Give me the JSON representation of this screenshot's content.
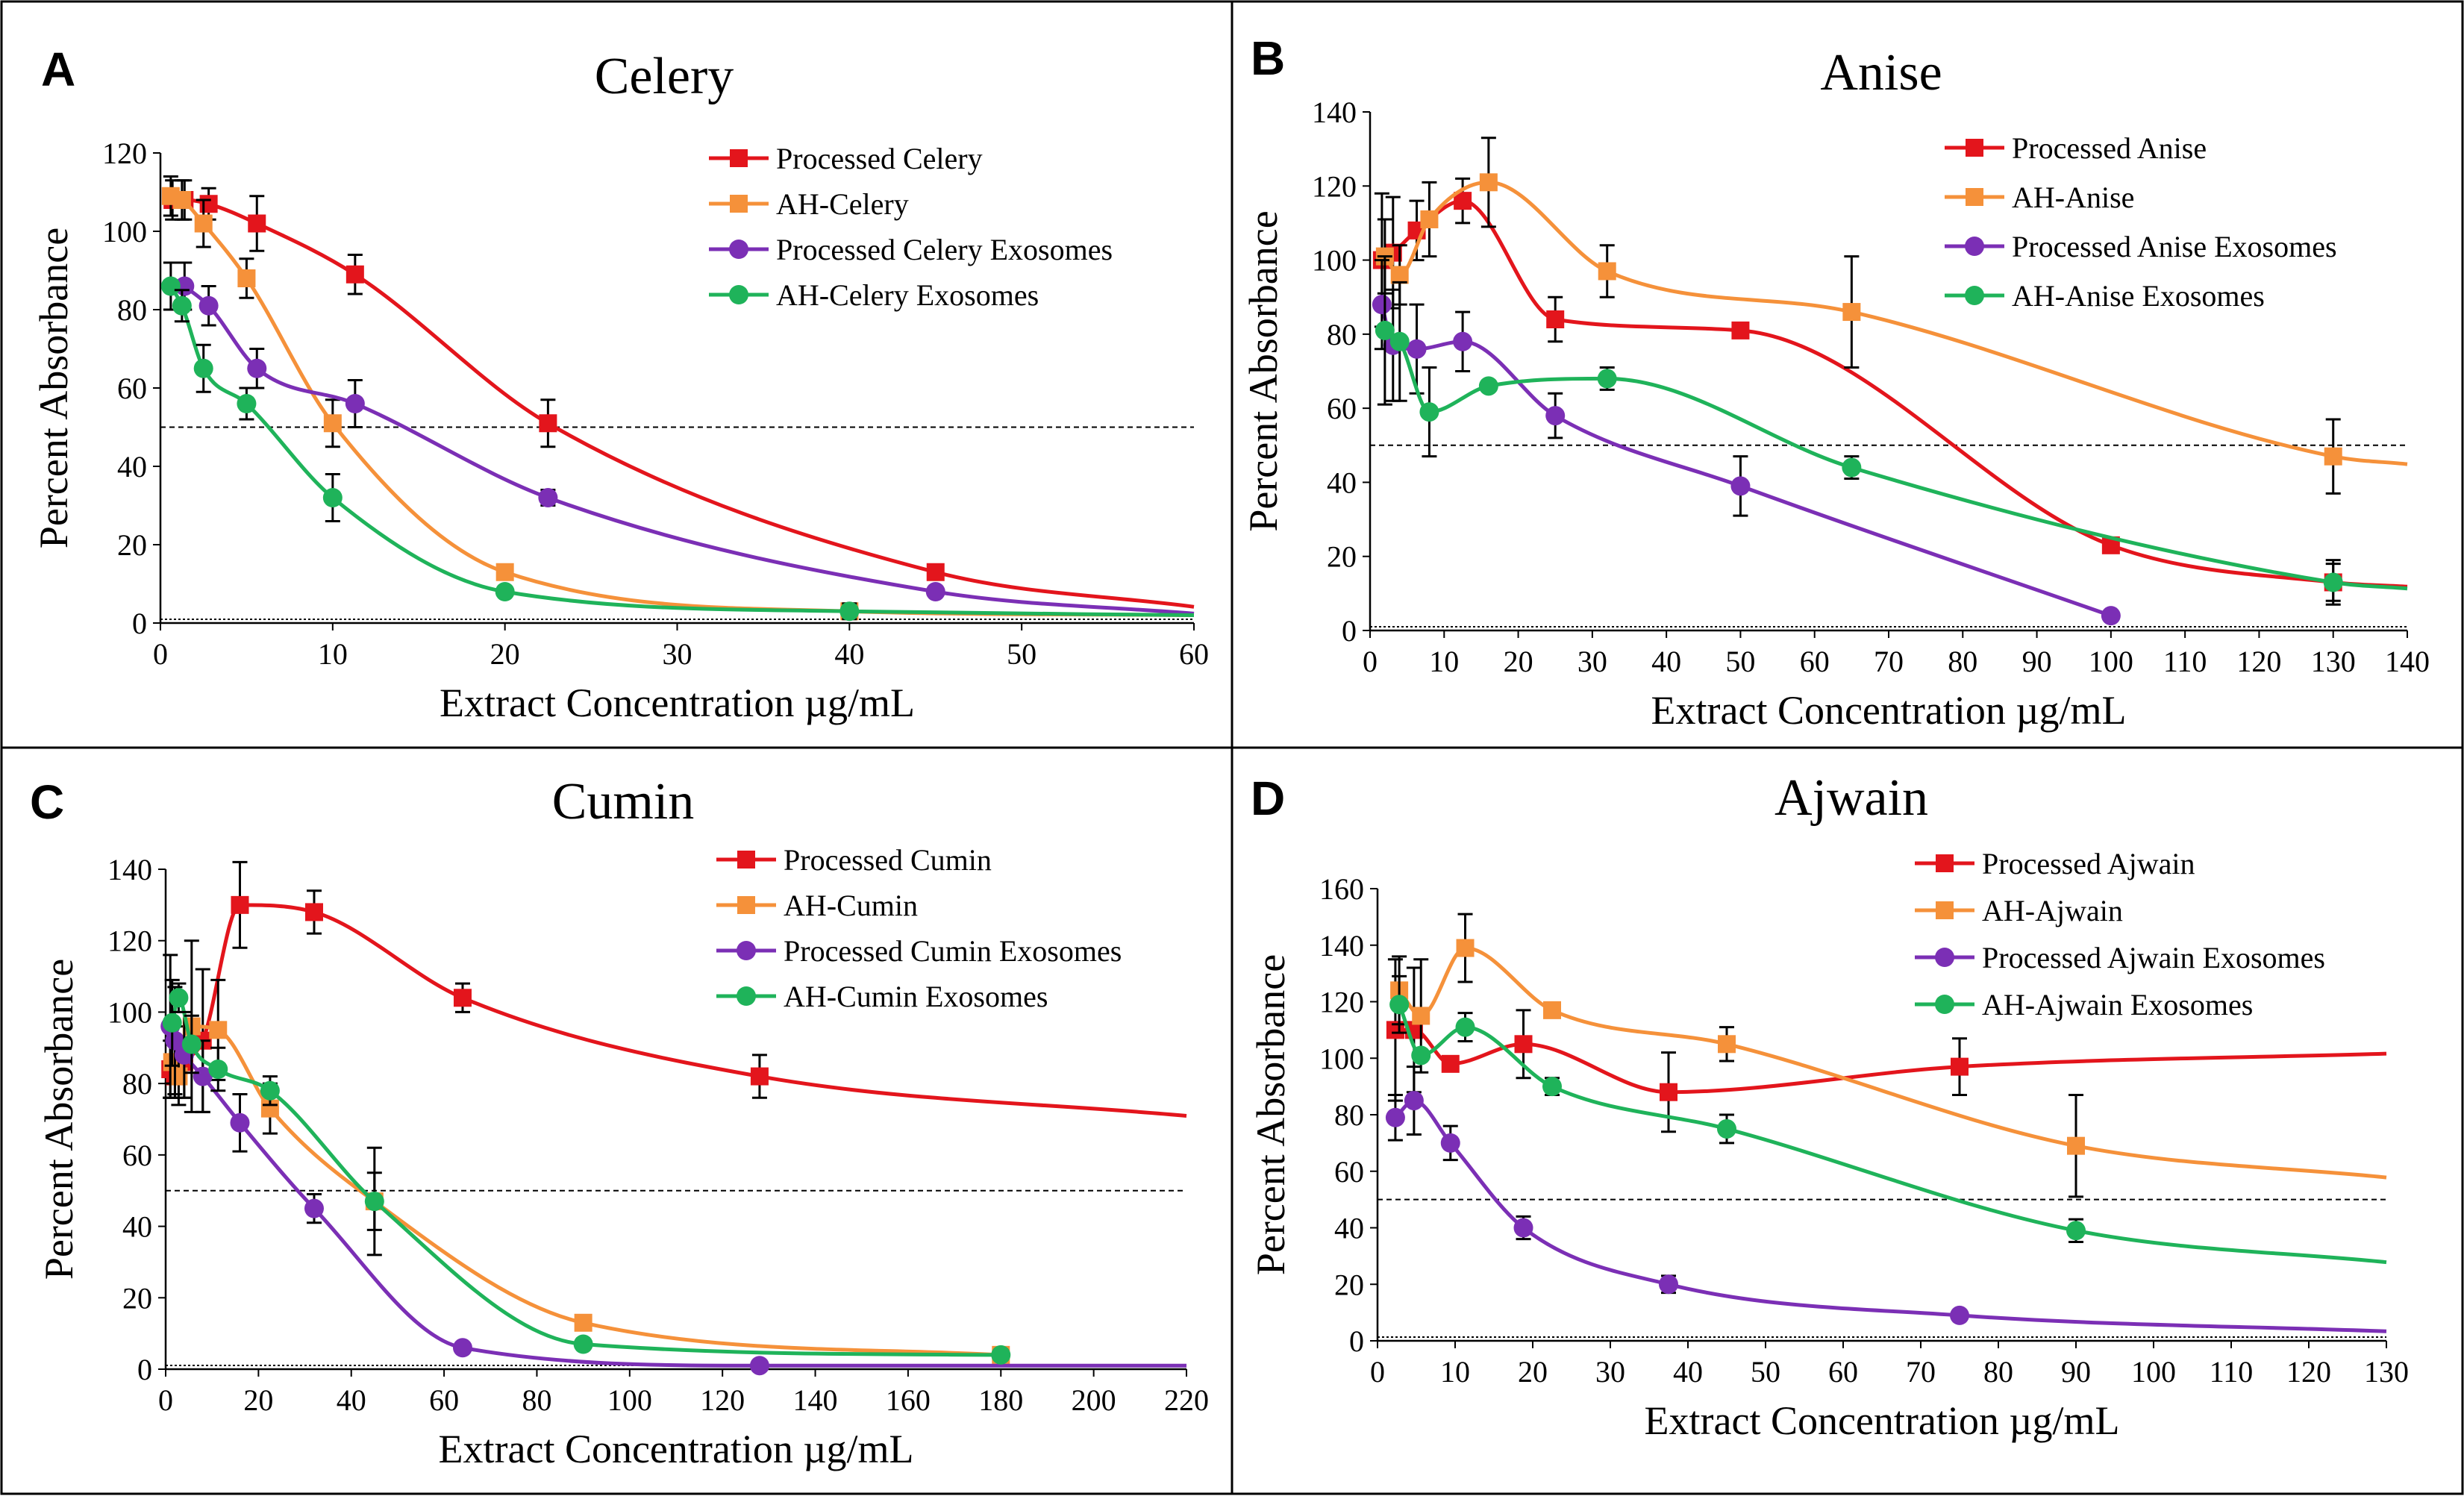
{
  "figure": {
    "series_colors": {
      "processed": "#e3151c",
      "ah": "#f5913a",
      "processed_exosomes": "#7b2fb5",
      "ah_exosomes": "#1fb35a"
    }
  },
  "chart_data": [
    {
      "panel": "A",
      "type": "line",
      "title": "Celery",
      "xlabel": "Extract Concentration  µg/mL",
      "ylabel": "Percent Absorbance",
      "xlim": [
        0,
        60
      ],
      "ylim": [
        0,
        120
      ],
      "xticks": [
        0,
        10,
        20,
        30,
        40,
        50,
        60
      ],
      "yticks": [
        0,
        20,
        40,
        60,
        80,
        100,
        120
      ],
      "xtick_labels": [
        "0",
        "10",
        "20",
        "30",
        "40",
        "50",
        "60"
      ],
      "ytick_labels": [
        "0",
        "20",
        "40",
        "60",
        "80",
        "100",
        "120"
      ],
      "reference_line": 50,
      "legend_position": "top-right",
      "series": [
        {
          "name": "Processed Celery",
          "key": "processed",
          "marker": "square",
          "x": [
            0.7,
            1.4,
            2.8,
            5.6,
            11.3,
            22.5,
            45
          ],
          "y": [
            108,
            108,
            107,
            102,
            89,
            51,
            13
          ],
          "err": [
            5,
            5,
            4,
            7,
            5,
            6,
            0
          ],
          "xmax": 60
        },
        {
          "name": "AH-Celery",
          "key": "ah",
          "marker": "square",
          "x": [
            0.6,
            1.25,
            2.5,
            5,
            10,
            20,
            40
          ],
          "y": [
            109,
            108,
            102,
            88,
            51,
            13,
            3
          ],
          "err": [
            5,
            5,
            6,
            5,
            6,
            0,
            0
          ],
          "xmax": 60
        },
        {
          "name": "Processed Celery Exosomes",
          "key": "processed_exosomes",
          "marker": "circle",
          "x": [
            1.4,
            2.8,
            5.6,
            11.3,
            22.5,
            45
          ],
          "y": [
            86,
            81,
            65,
            56,
            32,
            8
          ],
          "err": [
            6,
            5,
            5,
            6,
            2,
            0
          ],
          "xmax": 60
        },
        {
          "name": "AH-Celery Exosomes",
          "key": "ah_exosomes",
          "marker": "circle",
          "x": [
            0.6,
            1.25,
            2.5,
            5,
            10,
            20,
            40
          ],
          "y": [
            86,
            81,
            65,
            56,
            32,
            8,
            3
          ],
          "err": [
            6,
            4,
            6,
            4,
            6,
            0,
            2
          ],
          "xmax": 60
        }
      ]
    },
    {
      "panel": "B",
      "type": "line",
      "title": "Anise",
      "xlabel": "Extract Concentration  µg/mL",
      "ylabel": "Percent Absorbance",
      "xlim": [
        0,
        140
      ],
      "ylim": [
        0,
        140
      ],
      "xticks": [
        0,
        10,
        20,
        30,
        40,
        50,
        60,
        70,
        80,
        90,
        100,
        110,
        120,
        130,
        140
      ],
      "yticks": [
        0,
        20,
        40,
        60,
        80,
        100,
        120,
        140
      ],
      "xtick_labels": [
        "0",
        "10",
        "20",
        "30",
        "40",
        "50",
        "60",
        "70",
        "80",
        "90",
        "100",
        "110",
        "120",
        "130",
        "140"
      ],
      "ytick_labels": [
        "0",
        "20",
        "40",
        "60",
        "80",
        "100",
        "120",
        "140"
      ],
      "reference_line": 50,
      "legend_position": "top-right",
      "series": [
        {
          "name": "Processed Anise",
          "key": "processed",
          "marker": "square",
          "x": [
            1.6,
            3.1,
            6.3,
            12.5,
            25,
            50,
            100,
            130
          ],
          "y": [
            100,
            102,
            108,
            116,
            84,
            81,
            23,
            13
          ],
          "err": [
            18,
            15,
            8,
            6,
            6,
            0,
            0,
            6
          ],
          "xmax": 140
        },
        {
          "name": "AH-Anise",
          "key": "ah",
          "marker": "square",
          "x": [
            2,
            4,
            8,
            16,
            32,
            65,
            130
          ],
          "y": [
            101,
            96,
            111,
            121,
            97,
            86,
            47
          ],
          "err": [
            10,
            8,
            10,
            12,
            7,
            15,
            10
          ],
          "xmax": 140
        },
        {
          "name": "Processed Anise Exosomes",
          "key": "processed_exosomes",
          "marker": "circle",
          "x": [
            1.6,
            3.1,
            6.3,
            12.5,
            25,
            50,
            100
          ],
          "y": [
            88,
            77,
            76,
            78,
            58,
            39,
            4
          ],
          "err": [
            12,
            15,
            12,
            8,
            6,
            8,
            0
          ],
          "xmax": 100
        },
        {
          "name": "AH-Anise Exosomes",
          "key": "ah_exosomes",
          "marker": "circle",
          "x": [
            2,
            4,
            8,
            16,
            32,
            65,
            130
          ],
          "y": [
            81,
            78,
            59,
            66,
            68,
            44,
            13
          ],
          "err": [
            20,
            16,
            12,
            0,
            3,
            3,
            5
          ],
          "xmax": 140
        }
      ]
    },
    {
      "panel": "C",
      "type": "line",
      "title": "Cumin",
      "xlabel": "Extract Concentration  µg/mL",
      "ylabel": "Percent Absorbance",
      "xlim": [
        0,
        220
      ],
      "ylim": [
        0,
        140
      ],
      "xticks": [
        0,
        20,
        40,
        60,
        80,
        100,
        120,
        140,
        160,
        180,
        200,
        220
      ],
      "yticks": [
        0,
        20,
        40,
        60,
        80,
        100,
        120,
        140
      ],
      "xtick_labels": [
        "0",
        "20",
        "40",
        "60",
        "80",
        "100",
        "120",
        "140",
        "160",
        "180",
        "200",
        "220"
      ],
      "ytick_labels": [
        "0",
        "20",
        "40",
        "60",
        "80",
        "100",
        "120",
        "140"
      ],
      "reference_line": 50,
      "legend_position": "top-right",
      "series": [
        {
          "name": "Processed Cumin",
          "key": "processed",
          "marker": "square",
          "x": [
            1,
            2,
            4,
            8,
            16,
            32,
            64,
            128
          ],
          "y": [
            84,
            82,
            86,
            92,
            130,
            128,
            104,
            82
          ],
          "err": [
            8,
            6,
            10,
            20,
            12,
            6,
            4,
            6
          ],
          "xmax": 220
        },
        {
          "name": "AH-Cumin",
          "key": "ah",
          "marker": "square",
          "x": [
            1.4,
            2.8,
            5.6,
            11.3,
            22.5,
            45,
            90,
            180
          ],
          "y": [
            86,
            82,
            96,
            95,
            73,
            47,
            13,
            4
          ],
          "err": [
            6,
            8,
            24,
            14,
            7,
            15,
            0,
            0
          ],
          "xmax": 180
        },
        {
          "name": "Processed Cumin Exosomes",
          "key": "processed_exosomes",
          "marker": "circle",
          "x": [
            1,
            2,
            4,
            8,
            16,
            32,
            64,
            128
          ],
          "y": [
            96,
            92,
            88,
            82,
            69,
            45,
            6,
            1
          ],
          "err": [
            20,
            15,
            12,
            10,
            8,
            4,
            0,
            0
          ],
          "xmax": 220
        },
        {
          "name": "AH-Cumin Exosomes",
          "key": "ah_exosomes",
          "marker": "circle",
          "x": [
            1.4,
            2.8,
            5.6,
            11.3,
            22.5,
            45,
            90,
            180
          ],
          "y": [
            97,
            104,
            91,
            84,
            78,
            47,
            7,
            4
          ],
          "err": [
            12,
            4,
            8,
            6,
            4,
            8,
            0,
            0
          ],
          "xmax": 180
        }
      ]
    },
    {
      "panel": "D",
      "type": "line",
      "title": "Ajwain",
      "xlabel": "Extract Concentration  µg/mL",
      "ylabel": "Percent Absorbance",
      "xlim": [
        0,
        130
      ],
      "ylim": [
        0,
        160
      ],
      "xticks": [
        0,
        10,
        20,
        30,
        40,
        50,
        60,
        70,
        80,
        90,
        100,
        110,
        120,
        130
      ],
      "yticks": [
        0,
        20,
        40,
        60,
        80,
        100,
        120,
        140,
        160
      ],
      "xtick_labels": [
        "0",
        "10",
        "20",
        "30",
        "40",
        "50",
        "60",
        "70",
        "80",
        "90",
        "100",
        "110",
        "120",
        "130"
      ],
      "ytick_labels": [
        "0",
        "20",
        "40",
        "60",
        "80",
        "100",
        "120",
        "140",
        "160"
      ],
      "reference_line": 50,
      "legend_position": "top-right",
      "series": [
        {
          "name": "Processed Ajwain",
          "key": "processed",
          "marker": "square",
          "x": [
            2.3,
            4.7,
            9.4,
            18.8,
            37.5,
            75
          ],
          "y": [
            110,
            110,
            98,
            105,
            88,
            97
          ],
          "err": [
            25,
            22,
            0,
            12,
            14,
            10
          ],
          "xmax": 130
        },
        {
          "name": "AH-Ajwain",
          "key": "ah",
          "marker": "square",
          "x": [
            2.8,
            5.6,
            11.3,
            22.5,
            45,
            90
          ],
          "y": [
            124,
            115,
            139,
            117,
            105,
            69
          ],
          "err": [
            12,
            20,
            12,
            0,
            6,
            18
          ],
          "xmax": 130
        },
        {
          "name": "Processed Ajwain Exosomes",
          "key": "processed_exosomes",
          "marker": "circle",
          "x": [
            2.3,
            4.7,
            9.4,
            18.8,
            37.5,
            75
          ],
          "y": [
            79,
            85,
            70,
            40,
            20,
            9
          ],
          "err": [
            8,
            12,
            6,
            4,
            3,
            0
          ],
          "xmax": 130
        },
        {
          "name": "AH-Ajwain Exosomes",
          "key": "ah_exosomes",
          "marker": "circle",
          "x": [
            2.8,
            5.6,
            11.3,
            22.5,
            45,
            90
          ],
          "y": [
            119,
            101,
            111,
            90,
            75,
            39
          ],
          "err": [
            10,
            0,
            5,
            3,
            5,
            4
          ],
          "xmax": 130
        }
      ]
    }
  ]
}
